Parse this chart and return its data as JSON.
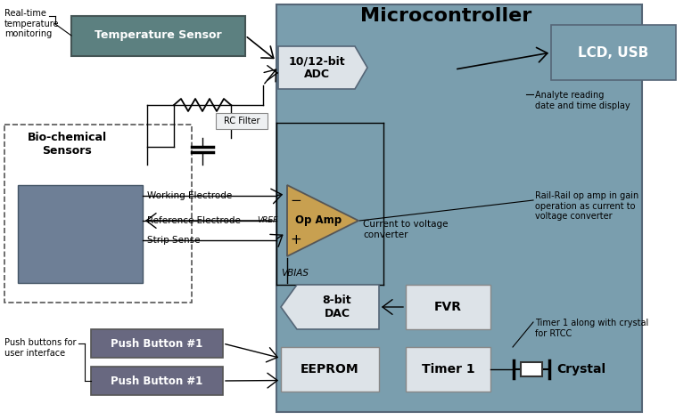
{
  "colors": {
    "mc_bg": "#7a9eae",
    "light_gray": "#dde3e8",
    "sensor_gray": "#6e7f96",
    "push_purple": "#686880",
    "temp_teal": "#5c8080",
    "lcd_teal": "#7a9eae",
    "opamp_gold": "#c8a050",
    "white_box": "#eef0f2",
    "rc_box": "#eef0f2"
  },
  "labels": {
    "mc_title": "Microcontroller",
    "temp": "Temperature Sensor",
    "biochem": "Bio-chemical\nSensors",
    "adc": "10/12-bit\nADC",
    "lcd": "LCD, USB",
    "opamp": "Op Amp",
    "dac": "8-bit\nDAC",
    "fvr": "FVR",
    "eeprom": "EEPROM",
    "timer1": "Timer 1",
    "crystal": "Crystal",
    "push1": "Push Button #1",
    "push2": "Push Button #1",
    "rc": "RC Filter",
    "we": "Working Electrode",
    "re": "Reference Electrode",
    "vref": "VREF",
    "ss": "Strip Sense",
    "vbias": "VBIAS",
    "ctv": "Current to voltage\nconverter",
    "rt": "Real-time\ntemperature\nmonitoring",
    "analyte": "Analyte reading\ndate and time display",
    "rail": "Rail-Rail op amp in gain\noperation as current to\nvoltage converter",
    "push_note": "Push buttons for\nuser interface",
    "timer_note": "Timer 1 along with crystal\nfor RTCC"
  }
}
